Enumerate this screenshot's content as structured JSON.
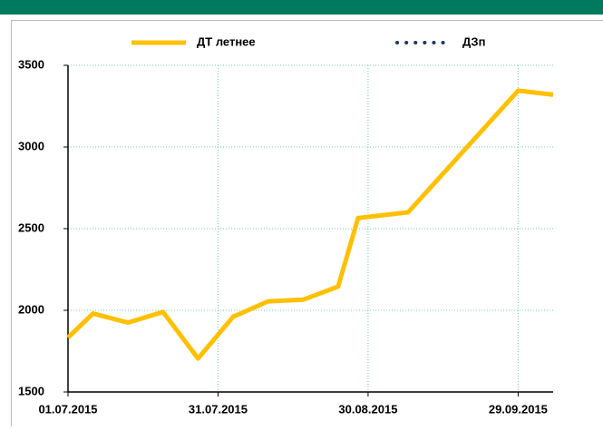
{
  "chart_data": {
    "type": "line",
    "x": [
      "01.07.2015",
      "06.07.2015",
      "13.07.2015",
      "20.07.2015",
      "27.07.2015",
      "03.08.2015",
      "10.08.2015",
      "17.08.2015",
      "24.08.2015",
      "28.08.2015",
      "07.09.2015",
      "29.09.2015",
      "06.10.2015"
    ],
    "series": [
      {
        "name": "ДТ летнее",
        "color": "#ffc000",
        "values": [
          1833,
          1980,
          1925,
          1990,
          1705,
          1960,
          2055,
          2065,
          2145,
          2565,
          2600,
          3345,
          3320
        ]
      },
      {
        "name": "ДЗп",
        "color": "#1f3864",
        "values": [
          null,
          null,
          null,
          null,
          null,
          null,
          null,
          null,
          null,
          null,
          null,
          null,
          null
        ]
      }
    ],
    "xlim": [
      "01.07.2015",
      "06.10.2015"
    ],
    "xticks": [
      "01.07.2015",
      "31.07.2015",
      "30.08.2015",
      "29.09.2015"
    ],
    "ylim": [
      1500,
      3500
    ],
    "yticks": [
      1500,
      2000,
      2500,
      3000,
      3500
    ],
    "grid": true
  }
}
